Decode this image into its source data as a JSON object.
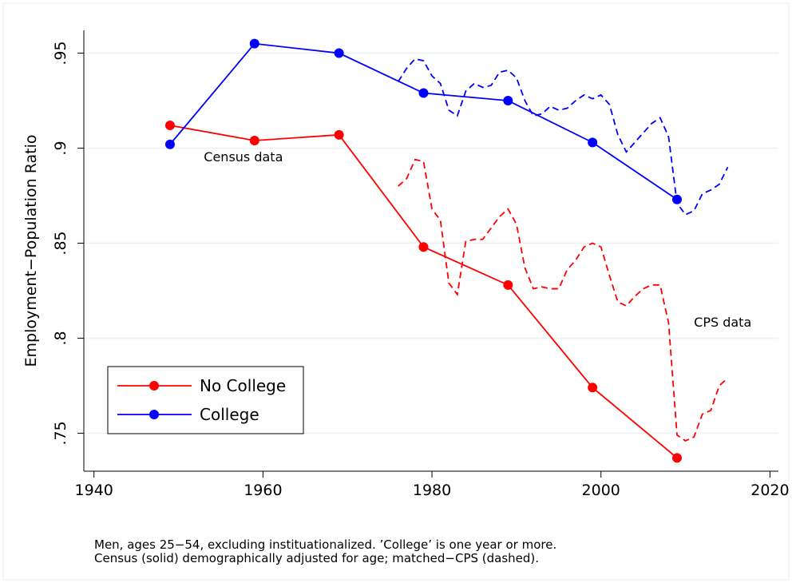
{
  "chart_data": {
    "type": "line",
    "ylabel": "Employment−Population Ratio",
    "xlim": [
      1938.8,
      2021
    ],
    "ylim": [
      0.73,
      0.962
    ],
    "xticks": [
      1940,
      1960,
      1980,
      2000,
      2020
    ],
    "yticks": [
      {
        "value": 0.75,
        "label": ".75"
      },
      {
        "value": 0.8,
        "label": ".8"
      },
      {
        "value": 0.85,
        "label": ".85"
      },
      {
        "value": 0.9,
        "label": ".9"
      },
      {
        "value": 0.95,
        "label": ".95"
      }
    ],
    "grid": true,
    "legend": "bottom-left",
    "annotations": [
      "Census data",
      "CPS data"
    ],
    "note": [
      "Men, ages 25−54, excluding instituationalized. ’College’ is one year or more.",
      "Census (solid) demographically adjusted for age; matched−CPS (dashed)."
    ],
    "series": [
      {
        "name": "No College",
        "color": "#ff0000",
        "markers": true,
        "dashed": false,
        "x": [
          1949,
          1959,
          1969,
          1979,
          1989,
          1999,
          2009
        ],
        "values": [
          0.912,
          0.904,
          0.907,
          0.848,
          0.828,
          0.774,
          0.737
        ]
      },
      {
        "name": "College",
        "color": "#0000ff",
        "markers": true,
        "dashed": false,
        "x": [
          1949,
          1959,
          1969,
          1979,
          1989,
          1999,
          2009
        ],
        "values": [
          0.902,
          0.955,
          0.95,
          0.929,
          0.925,
          0.903,
          0.873
        ]
      },
      {
        "color": "#ff0000",
        "markers": false,
        "dashed": true,
        "x": [
          1976,
          1977,
          1978,
          1979,
          1980,
          1981,
          1982,
          1983,
          1984,
          1985,
          1986,
          1987,
          1988,
          1989,
          1990,
          1991,
          1992,
          1993,
          1994,
          1995,
          1996,
          1997,
          1998,
          1999,
          2000,
          2001,
          2002,
          2003,
          2004,
          2005,
          2006,
          2007,
          2008,
          2009,
          2010,
          2011,
          2012,
          2013,
          2014,
          2015
        ],
        "values": [
          0.88,
          0.884,
          0.894,
          0.893,
          0.868,
          0.862,
          0.829,
          0.823,
          0.851,
          0.852,
          0.852,
          0.858,
          0.864,
          0.868,
          0.86,
          0.837,
          0.826,
          0.827,
          0.826,
          0.826,
          0.836,
          0.841,
          0.848,
          0.85,
          0.848,
          0.833,
          0.819,
          0.817,
          0.822,
          0.826,
          0.828,
          0.828,
          0.808,
          0.749,
          0.746,
          0.748,
          0.76,
          0.762,
          0.775,
          0.779
        ]
      },
      {
        "color": "#0000ff",
        "markers": false,
        "dashed": true,
        "x": [
          1976,
          1977,
          1978,
          1979,
          1980,
          1981,
          1982,
          1983,
          1984,
          1985,
          1986,
          1987,
          1988,
          1989,
          1990,
          1991,
          1992,
          1993,
          1994,
          1995,
          1996,
          1997,
          1998,
          1999,
          2000,
          2001,
          2002,
          2003,
          2004,
          2005,
          2006,
          2007,
          2008,
          2009,
          2010,
          2011,
          2012,
          2013,
          2014,
          2015
        ],
        "values": [
          0.935,
          0.942,
          0.947,
          0.946,
          0.938,
          0.934,
          0.92,
          0.917,
          0.93,
          0.934,
          0.932,
          0.933,
          0.94,
          0.941,
          0.937,
          0.925,
          0.917,
          0.918,
          0.922,
          0.92,
          0.921,
          0.925,
          0.928,
          0.926,
          0.928,
          0.923,
          0.907,
          0.898,
          0.903,
          0.908,
          0.913,
          0.916,
          0.906,
          0.871,
          0.865,
          0.867,
          0.876,
          0.878,
          0.881,
          0.89
        ]
      }
    ]
  }
}
